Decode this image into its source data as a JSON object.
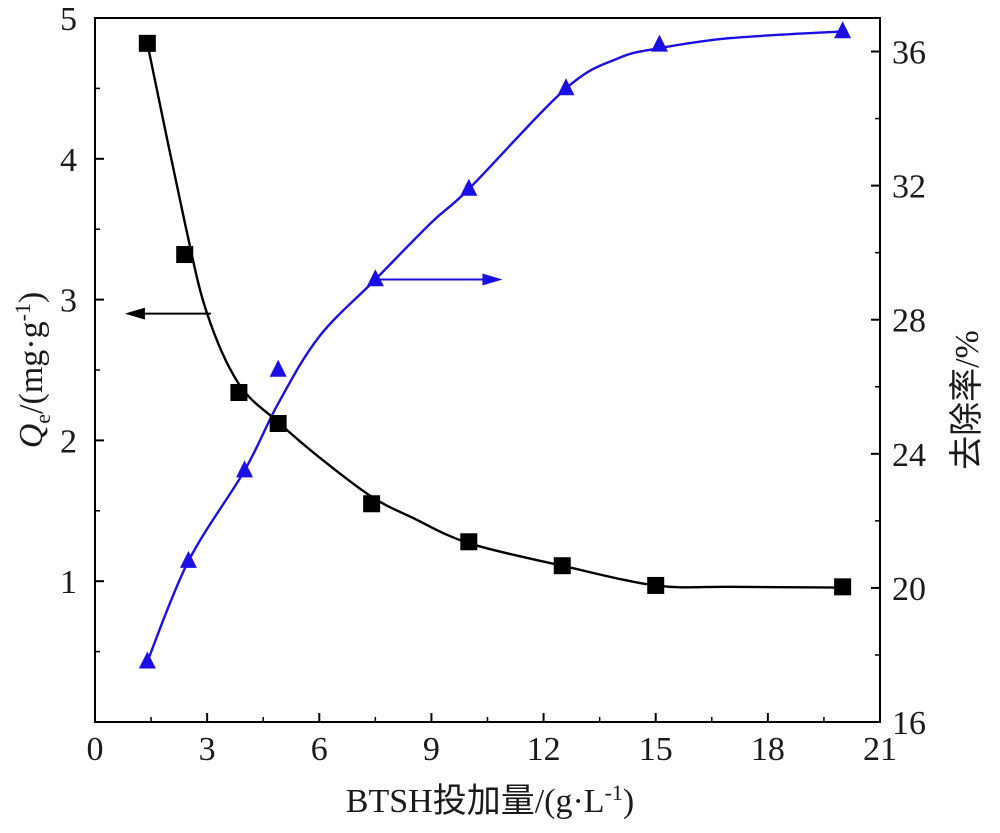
{
  "chart_data": {
    "type": "line",
    "xlabel": "BTSH投加量/(g·L-1)",
    "xlabel_parts": {
      "main": "BTSH投加量/(g·L",
      "sup": "-1",
      "close": ")"
    },
    "ylabel_left_parts": {
      "q": "Q",
      "sub": "e",
      "unit": "/(mg·g",
      "sup": "-1",
      "close": ")"
    },
    "ylabel_right": "去除率/%",
    "xlim": [
      0,
      21
    ],
    "ylim_left": [
      0.0,
      5.0
    ],
    "ylim_right": [
      16,
      37
    ],
    "x_ticks": [
      "0",
      "3",
      "6",
      "9",
      "12",
      "15",
      "18",
      "21"
    ],
    "y_left_ticks": [
      "1",
      "2",
      "3",
      "4",
      "5"
    ],
    "y_right_ticks": [
      "16",
      "20",
      "24",
      "28",
      "32",
      "36"
    ],
    "series": [
      {
        "axis": "left",
        "marker": "square",
        "color": "#000000",
        "x": [
          1.4,
          2.4,
          3.85,
          4.9,
          7.4,
          10.0,
          12.5,
          15.0,
          20.0
        ],
        "y": [
          4.82,
          3.32,
          2.34,
          2.12,
          1.55,
          1.28,
          1.11,
          0.97,
          0.96
        ],
        "curve_x": [
          1.4,
          2.4,
          3.0,
          3.85,
          4.9,
          6.0,
          7.4,
          8.5,
          10.0,
          12.5,
          15.0,
          17.0,
          20.0
        ],
        "curve_y": [
          4.82,
          3.55,
          2.9,
          2.4,
          2.13,
          1.88,
          1.6,
          1.45,
          1.27,
          1.11,
          0.97,
          0.96,
          0.955
        ]
      },
      {
        "axis": "right",
        "marker": "triangle",
        "color": "#1a10e6",
        "x": [
          1.4,
          2.5,
          4.0,
          4.9,
          7.5,
          10.0,
          12.6,
          15.1,
          20.0
        ],
        "y": [
          17.8,
          20.8,
          23.5,
          26.5,
          29.2,
          31.9,
          34.9,
          36.2,
          36.6
        ],
        "curve_x": [
          1.4,
          2.5,
          4.0,
          4.9,
          6.0,
          7.5,
          9.0,
          10.0,
          12.6,
          14.0,
          15.1,
          17.0,
          20.0
        ],
        "curve_y": [
          17.8,
          20.8,
          23.5,
          25.5,
          27.5,
          29.2,
          30.9,
          31.9,
          34.9,
          35.8,
          36.1,
          36.4,
          36.6
        ]
      }
    ],
    "annotations": [
      {
        "type": "arrow",
        "axis": "left",
        "color": "#000000",
        "from": [
          3.1,
          2.9
        ],
        "to": [
          0.8,
          2.9
        ]
      },
      {
        "type": "arrow",
        "axis": "right",
        "color": "#1a10e6",
        "from": [
          7.5,
          29.2
        ],
        "to": [
          10.9,
          29.2
        ]
      }
    ]
  }
}
